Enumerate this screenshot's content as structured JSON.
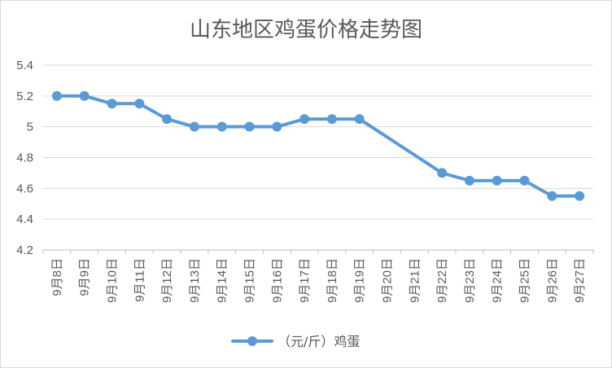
{
  "chart_data": {
    "type": "line",
    "title": "山东地区鸡蛋价格走势图",
    "xlabel": "",
    "ylabel": "",
    "ylim": [
      4.2,
      5.4
    ],
    "yticks": [
      "4.2",
      "4.4",
      "4.6",
      "4.8",
      "5",
      "5.2",
      "5.4"
    ],
    "categories": [
      "9月8日",
      "9月9日",
      "9月10日",
      "9月11日",
      "9月12日",
      "9月13日",
      "9月14日",
      "9月15日",
      "9月16日",
      "9月17日",
      "9月18日",
      "9月19日",
      "9月20日",
      "9月21日",
      "9月22日",
      "9月23日",
      "9月24日",
      "9月25日",
      "9月26日",
      "9月27日"
    ],
    "series": [
      {
        "name": "（元/斤）鸡蛋",
        "color": "#5b9bd5",
        "values": [
          5.2,
          5.2,
          5.15,
          5.15,
          5.05,
          5.0,
          5.0,
          5.0,
          5.0,
          5.05,
          5.05,
          5.05,
          null,
          null,
          4.7,
          4.65,
          4.65,
          4.65,
          4.55,
          4.55
        ]
      }
    ],
    "grid": true,
    "legend_position": "bottom"
  }
}
